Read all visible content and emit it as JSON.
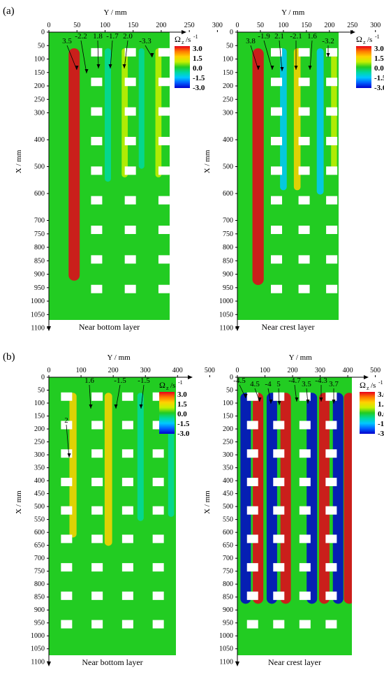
{
  "chart_data": [
    {
      "panel": "(a)",
      "type": "heatmap",
      "quantity_label": "Ωz /s-1",
      "xlabel": "Y / mm",
      "ylabel": "X / mm",
      "caption": "Near bottom layer",
      "xlim": [
        0,
        300
      ],
      "ylim": [
        0,
        1100
      ],
      "xticks": [
        "0",
        "50",
        "100",
        "150",
        "200",
        "250",
        "300"
      ],
      "yticks": [
        "0",
        "50",
        "100",
        "150",
        "200",
        "250",
        "300",
        "400",
        "500",
        "600",
        "700",
        "750",
        "800",
        "850",
        "900",
        "950",
        "1000",
        "1050",
        "1100"
      ],
      "colorbar": {
        "labels": [
          "3.0",
          "1.5",
          "0.0",
          "-1.5",
          "-3.0"
        ],
        "range": [
          -3,
          3
        ],
        "colors": [
          "#e8001a",
          "#ff7a00",
          "#ffd200",
          "#c8f000",
          "#22cc22",
          "#00d8a0",
          "#00c8ff",
          "#0060ff",
          "#0000cc"
        ]
      },
      "annotations": [
        {
          "text": "3.5",
          "value": 3.5,
          "y": 55
        },
        {
          "text": "-2.2",
          "value": -2.2,
          "y": 105
        },
        {
          "text": "1.8",
          "value": 1.8,
          "y": 130
        },
        {
          "text": "-1.7",
          "value": -1.7,
          "y": 160
        },
        {
          "text": "2.0",
          "value": 2.0,
          "y": 195
        },
        {
          "text": "-3.3",
          "value": -3.3,
          "y": 255
        }
      ],
      "bands": [
        {
          "y": 45,
          "value": 3.3
        },
        {
          "y": 105,
          "value": -1.0
        },
        {
          "y": 135,
          "value": 0.9
        },
        {
          "y": 165,
          "value": -0.7
        },
        {
          "y": 195,
          "value": 0.9
        },
        {
          "y": 255,
          "value": -3.2
        }
      ]
    },
    {
      "panel": "(a)",
      "type": "heatmap",
      "quantity_label": "Ωz /s-1",
      "xlabel": "Y / mm",
      "ylabel": "X / mm",
      "caption": "Near crest layer",
      "xlim": [
        0,
        300
      ],
      "ylim": [
        0,
        1100
      ],
      "xticks": [
        "0",
        "50",
        "100",
        "150",
        "200",
        "250",
        "300"
      ],
      "yticks": [
        "0",
        "50",
        "100",
        "150",
        "200",
        "250",
        "300",
        "400",
        "500",
        "600",
        "700",
        "750",
        "800",
        "850",
        "900",
        "950",
        "1000",
        "1050",
        "1100"
      ],
      "colorbar": {
        "labels": [
          "3.0",
          "1.5",
          "0.0",
          "-1.5",
          "-3.0"
        ],
        "range": [
          -3,
          3
        ],
        "colors": [
          "#e8001a",
          "#ff7a00",
          "#ffd200",
          "#c8f000",
          "#22cc22",
          "#00d8a0",
          "#00c8ff",
          "#0060ff",
          "#0000cc"
        ]
      },
      "annotations": [
        {
          "text": "3.8",
          "value": 3.8,
          "y": 55
        },
        {
          "text": "-1.9",
          "value": -1.9,
          "y": 100
        },
        {
          "text": "2.1",
          "value": 2.1,
          "y": 130
        },
        {
          "text": "-2.1",
          "value": -2.1,
          "y": 180
        },
        {
          "text": "1.6",
          "value": 1.6,
          "y": 210
        },
        {
          "text": "-3.2",
          "value": -3.2,
          "y": 255
        }
      ],
      "bands": [
        {
          "y": 45,
          "value": 3.4
        },
        {
          "y": 100,
          "value": -1.2
        },
        {
          "y": 130,
          "value": 1.2
        },
        {
          "y": 180,
          "value": -1.3
        },
        {
          "y": 210,
          "value": 0.8
        },
        {
          "y": 255,
          "value": -3.2
        }
      ]
    },
    {
      "panel": "(b)",
      "type": "heatmap",
      "quantity_label": "Ωz /s-1",
      "xlabel": "Y / mm",
      "ylabel": "X / mm",
      "caption": "Near bottom layer",
      "xlim": [
        0,
        500
      ],
      "ylim": [
        0,
        1100
      ],
      "xticks": [
        "0",
        "100",
        "200",
        "300",
        "400",
        "500"
      ],
      "yticks": [
        "0",
        "50",
        "100",
        "150",
        "200",
        "250",
        "300",
        "350",
        "400",
        "450",
        "500",
        "550",
        "600",
        "650",
        "700",
        "750",
        "800",
        "850",
        "900",
        "950",
        "1000",
        "1050",
        "1100"
      ],
      "colorbar": {
        "labels": [
          "3.0",
          "1.5",
          "0.0",
          "-1.5",
          "-3.0"
        ],
        "range": [
          -3,
          3
        ],
        "colors": [
          "#e8001a",
          "#ff7a00",
          "#ffd200",
          "#c8f000",
          "#22cc22",
          "#00d8a0",
          "#00c8ff",
          "#0060ff",
          "#0000cc"
        ]
      },
      "annotations": [
        {
          "text": "2",
          "value": 2,
          "y": 80
        },
        {
          "text": "1.6",
          "value": 1.6,
          "y": 185
        },
        {
          "text": "-1.5",
          "value": -1.5,
          "y": 285
        },
        {
          "text": "-1.5",
          "value": -1.5,
          "y": 380
        }
      ],
      "bands": [
        {
          "y": 75,
          "value": 1.4
        },
        {
          "y": 185,
          "value": 1.6
        },
        {
          "y": 285,
          "value": -1.0
        },
        {
          "y": 380,
          "value": -0.9
        }
      ]
    },
    {
      "panel": "(b)",
      "type": "heatmap",
      "quantity_label": "Ωz /s-1",
      "xlabel": "Y / mm",
      "ylabel": "X / mm",
      "caption": "Near crest layer",
      "xlim": [
        0,
        500
      ],
      "ylim": [
        0,
        1100
      ],
      "xticks": [
        "0",
        "100",
        "200",
        "300",
        "400",
        "500"
      ],
      "yticks": [
        "0",
        "50",
        "100",
        "150",
        "200",
        "250",
        "300",
        "350",
        "400",
        "450",
        "500",
        "550",
        "600",
        "650",
        "700",
        "750",
        "800",
        "850",
        "900",
        "950",
        "1000",
        "1050",
        "1100"
      ],
      "colorbar": {
        "labels": [
          "3.0",
          "1.5",
          "0.0",
          "-1.5",
          "-3.0"
        ],
        "range": [
          -3,
          3
        ],
        "colors": [
          "#e8001a",
          "#ff7a00",
          "#ffd200",
          "#c8f000",
          "#22cc22",
          "#00d8a0",
          "#00c8ff",
          "#0060ff",
          "#0000cc"
        ]
      },
      "annotations": [
        {
          "text": "-4.5",
          "value": -4.5,
          "y": 30
        },
        {
          "text": "4.5",
          "value": 4.5,
          "y": 80
        },
        {
          "text": "-4",
          "value": -4,
          "y": 120
        },
        {
          "text": "5",
          "value": 5,
          "y": 185
        },
        {
          "text": "-4.7",
          "value": -4.7,
          "y": 275
        },
        {
          "text": "3.5",
          "value": 3.5,
          "y": 315
        },
        {
          "text": "-4.3",
          "value": -4.3,
          "y": 365
        },
        {
          "text": "3.7",
          "value": 3.7,
          "y": 405
        }
      ],
      "bands": [
        {
          "y": 30,
          "value": -3.0
        },
        {
          "y": 75,
          "value": 3.0
        },
        {
          "y": 125,
          "value": -3.0
        },
        {
          "y": 175,
          "value": 3.0
        },
        {
          "y": 270,
          "value": -3.0
        },
        {
          "y": 315,
          "value": 3.0
        },
        {
          "y": 365,
          "value": -3.0
        },
        {
          "y": 405,
          "value": 3.0
        }
      ]
    }
  ],
  "figure": {
    "label_a": "(a)",
    "label_b": "(b)",
    "unit_sub": "z",
    "unit_sup": "-1"
  }
}
